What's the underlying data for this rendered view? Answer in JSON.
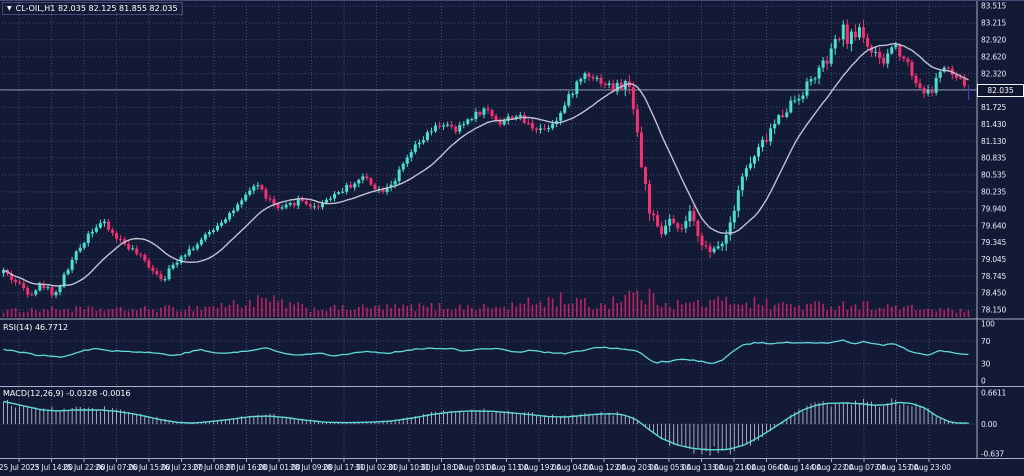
{
  "header": {
    "title": "CL-OIL,H1 82.035 82.125 81.855 82.035",
    "symbol": "CL-OIL",
    "timeframe": "H1"
  },
  "price_axis": {
    "current_price": "82.035",
    "levels": [
      {
        "p": 83.515,
        "t": "83.515"
      },
      {
        "p": 83.215,
        "t": "83.215"
      },
      {
        "p": 82.92,
        "t": "82.920"
      },
      {
        "p": 82.62,
        "t": "82.620"
      },
      {
        "p": 82.32,
        "t": "82.320"
      },
      {
        "p": 82.025,
        "t": "",
        "hidden": true
      },
      {
        "p": 81.725,
        "t": "81.725"
      },
      {
        "p": 81.43,
        "t": "81.430"
      },
      {
        "p": 81.13,
        "t": "81.130"
      },
      {
        "p": 80.835,
        "t": "80.835"
      },
      {
        "p": 80.535,
        "t": "80.535"
      },
      {
        "p": 80.235,
        "t": "80.235"
      },
      {
        "p": 79.94,
        "t": "79.940"
      },
      {
        "p": 79.64,
        "t": "79.640"
      },
      {
        "p": 79.345,
        "t": "79.345"
      },
      {
        "p": 79.045,
        "t": "79.045"
      },
      {
        "p": 78.745,
        "t": "78.745"
      },
      {
        "p": 78.45,
        "t": "78.450"
      },
      {
        "p": 78.15,
        "t": "78.150"
      }
    ]
  },
  "rsi_pane": {
    "label": "RSI(14) 46.7712",
    "scale": [
      {
        "v": 100,
        "t": "100"
      },
      {
        "v": 70,
        "t": "70"
      },
      {
        "v": 30,
        "t": "30"
      },
      {
        "v": 0,
        "t": "0"
      }
    ],
    "dotted_levels": [
      70,
      30
    ]
  },
  "macd_pane": {
    "label": "MACD(12,26,9) -0.0328 -0.0016",
    "scale": [
      {
        "v": 0.6611,
        "t": "0.6611"
      },
      {
        "v": 0.0,
        "t": "0.00"
      },
      {
        "v": -0.637,
        "t": "-0.637"
      }
    ],
    "dotted_levels": [
      0.0
    ]
  },
  "time_axis": {
    "labels": [
      "25 Jul 2023",
      "25 Jul 14:00",
      "25 Jul 22:00",
      "26 Jul 07:00",
      "26 Jul 15:00",
      "26 Jul 23:00",
      "27 Jul 08:00",
      "27 Jul 16:00",
      "28 Jul 01:00",
      "28 Jul 09:00",
      "28 Jul 17:00",
      "31 Jul 02:00",
      "31 Jul 10:00",
      "31 Jul 18:00",
      "1 Aug 03:00",
      "1 Aug 11:00",
      "1 Aug 19:00",
      "2 Aug 04:00",
      "2 Aug 12:00",
      "2 Aug 20:00",
      "3 Aug 05:00",
      "3 Aug 13:00",
      "3 Aug 21:00",
      "4 Aug 06:00",
      "4 Aug 14:00",
      "4 Aug 22:00",
      "7 Aug 07:00",
      "7 Aug 15:00",
      "7 Aug 23:00"
    ]
  },
  "colors": {
    "background": "#131a36",
    "grid": "#414b76",
    "bull": "#4ae0cf",
    "bear": "#f5316f",
    "current_candle": "#5b35c9",
    "ma_line": "#c0c3d2",
    "volume": "#b82461",
    "indicator_line": "#5fd9da",
    "macd_histogram": "#c7cdde",
    "pane_border": "#a9afc6",
    "axis_text": "#e9ecf6",
    "price_line": "#8d93a8",
    "price_tag_bg": "#10152e",
    "price_tag_border": "#f0f2fa",
    "title_text": "#ffffff"
  },
  "chart_data": {
    "type": "candlestick",
    "title": "CL-OIL,H1",
    "bars": 240,
    "price_ylim": [
      78.15,
      83.515
    ],
    "rsi_ylim": [
      0,
      100
    ],
    "macd_ylim": [
      -0.637,
      0.6611
    ],
    "current_bar_ohlc": {
      "open": 82.035,
      "high": 82.125,
      "low": 81.855,
      "close": 82.035
    },
    "indicators": [
      {
        "name": "MA",
        "type": "sma",
        "period": 16
      },
      {
        "name": "RSI",
        "period": 14,
        "value": 46.7712
      },
      {
        "name": "MACD",
        "params": [
          12,
          26,
          9
        ],
        "values": [
          -0.0328,
          -0.0016
        ]
      }
    ],
    "price_path": [
      [
        0,
        78.9
      ],
      [
        12,
        78.7
      ],
      [
        30,
        78.45
      ],
      [
        42,
        78.6
      ],
      [
        55,
        78.42
      ],
      [
        70,
        78.95
      ],
      [
        90,
        79.55
      ],
      [
        102,
        79.7
      ],
      [
        115,
        79.45
      ],
      [
        130,
        79.25
      ],
      [
        148,
        78.95
      ],
      [
        163,
        78.7
      ],
      [
        180,
        79.1
      ],
      [
        200,
        79.35
      ],
      [
        220,
        79.7
      ],
      [
        242,
        80.05
      ],
      [
        256,
        80.4
      ],
      [
        266,
        80.15
      ],
      [
        280,
        79.9
      ],
      [
        300,
        80.1
      ],
      [
        315,
        79.95
      ],
      [
        330,
        80.15
      ],
      [
        350,
        80.35
      ],
      [
        365,
        80.5
      ],
      [
        380,
        80.25
      ],
      [
        395,
        80.45
      ],
      [
        412,
        80.95
      ],
      [
        428,
        81.25
      ],
      [
        442,
        81.45
      ],
      [
        456,
        81.3
      ],
      [
        470,
        81.55
      ],
      [
        486,
        81.7
      ],
      [
        500,
        81.45
      ],
      [
        515,
        81.6
      ],
      [
        530,
        81.4
      ],
      [
        545,
        81.35
      ],
      [
        560,
        81.6
      ],
      [
        575,
        82.1
      ],
      [
        586,
        82.35
      ],
      [
        600,
        82.2
      ],
      [
        614,
        82.05
      ],
      [
        626,
        82.15
      ],
      [
        634,
        81.8
      ],
      [
        642,
        80.6
      ],
      [
        652,
        79.75
      ],
      [
        660,
        79.4
      ],
      [
        668,
        79.75
      ],
      [
        678,
        79.5
      ],
      [
        690,
        79.8
      ],
      [
        700,
        79.45
      ],
      [
        710,
        79.1
      ],
      [
        718,
        79.3
      ],
      [
        728,
        79.55
      ],
      [
        740,
        80.45
      ],
      [
        755,
        80.85
      ],
      [
        770,
        81.3
      ],
      [
        785,
        81.7
      ],
      [
        800,
        81.95
      ],
      [
        815,
        82.3
      ],
      [
        828,
        82.55
      ],
      [
        842,
        83.1
      ],
      [
        850,
        82.9
      ],
      [
        860,
        83.15
      ],
      [
        870,
        82.75
      ],
      [
        882,
        82.45
      ],
      [
        893,
        82.85
      ],
      [
        905,
        82.6
      ],
      [
        918,
        82.1
      ],
      [
        930,
        81.95
      ],
      [
        942,
        82.45
      ],
      [
        952,
        82.3
      ],
      [
        963,
        82.15
      ],
      [
        975,
        82.04
      ]
    ],
    "volatility_path": [
      [
        0,
        0.1
      ],
      [
        100,
        0.1
      ],
      [
        200,
        0.09
      ],
      [
        300,
        0.09
      ],
      [
        400,
        0.11
      ],
      [
        500,
        0.1
      ],
      [
        560,
        0.13
      ],
      [
        600,
        0.11
      ],
      [
        630,
        0.26
      ],
      [
        650,
        0.3
      ],
      [
        670,
        0.2
      ],
      [
        700,
        0.16
      ],
      [
        730,
        0.22
      ],
      [
        760,
        0.2
      ],
      [
        800,
        0.16
      ],
      [
        830,
        0.2
      ],
      [
        860,
        0.24
      ],
      [
        900,
        0.16
      ],
      [
        940,
        0.14
      ],
      [
        975,
        0.1
      ]
    ],
    "rsi_path": [
      [
        0,
        57
      ],
      [
        35,
        46
      ],
      [
        60,
        42
      ],
      [
        95,
        58
      ],
      [
        112,
        53
      ],
      [
        150,
        50
      ],
      [
        175,
        45
      ],
      [
        200,
        55
      ],
      [
        220,
        48
      ],
      [
        245,
        52
      ],
      [
        266,
        58
      ],
      [
        280,
        50
      ],
      [
        296,
        45
      ],
      [
        320,
        50
      ],
      [
        332,
        44
      ],
      [
        350,
        48
      ],
      [
        368,
        52
      ],
      [
        384,
        48
      ],
      [
        410,
        55
      ],
      [
        432,
        58
      ],
      [
        450,
        57
      ],
      [
        466,
        52
      ],
      [
        480,
        56
      ],
      [
        498,
        58
      ],
      [
        514,
        50
      ],
      [
        532,
        54
      ],
      [
        548,
        50
      ],
      [
        566,
        48
      ],
      [
        584,
        54
      ],
      [
        602,
        60
      ],
      [
        614,
        57
      ],
      [
        628,
        55
      ],
      [
        638,
        52
      ],
      [
        648,
        38
      ],
      [
        656,
        31
      ],
      [
        662,
        35
      ],
      [
        668,
        33
      ],
      [
        680,
        38
      ],
      [
        692,
        37
      ],
      [
        706,
        33
      ],
      [
        714,
        31
      ],
      [
        722,
        36
      ],
      [
        730,
        48
      ],
      [
        736,
        55
      ],
      [
        742,
        63
      ],
      [
        756,
        67
      ],
      [
        772,
        66
      ],
      [
        788,
        68
      ],
      [
        800,
        66
      ],
      [
        812,
        68
      ],
      [
        824,
        66
      ],
      [
        836,
        70
      ],
      [
        845,
        72
      ],
      [
        852,
        65
      ],
      [
        862,
        69
      ],
      [
        872,
        66
      ],
      [
        882,
        62
      ],
      [
        893,
        66
      ],
      [
        905,
        56
      ],
      [
        918,
        48
      ],
      [
        928,
        45
      ],
      [
        940,
        53
      ],
      [
        950,
        50
      ],
      [
        962,
        48
      ],
      [
        975,
        46.8
      ]
    ],
    "macd_path": [
      [
        0,
        0.5
      ],
      [
        25,
        0.38
      ],
      [
        42,
        0.3
      ],
      [
        58,
        0.28
      ],
      [
        75,
        0.3
      ],
      [
        100,
        0.3
      ],
      [
        117,
        0.27
      ],
      [
        138,
        0.2
      ],
      [
        159,
        0.1
      ],
      [
        176,
        0.04
      ],
      [
        192,
        0.02
      ],
      [
        209,
        0.05
      ],
      [
        230,
        0.1
      ],
      [
        251,
        0.16
      ],
      [
        268,
        0.17
      ],
      [
        285,
        0.14
      ],
      [
        306,
        0.08
      ],
      [
        326,
        0.04
      ],
      [
        347,
        0.03
      ],
      [
        368,
        0.04
      ],
      [
        389,
        0.06
      ],
      [
        410,
        0.12
      ],
      [
        431,
        0.2
      ],
      [
        452,
        0.26
      ],
      [
        473,
        0.28
      ],
      [
        494,
        0.27
      ],
      [
        510,
        0.24
      ],
      [
        531,
        0.2
      ],
      [
        548,
        0.16
      ],
      [
        565,
        0.15
      ],
      [
        581,
        0.18
      ],
      [
        598,
        0.21
      ],
      [
        611,
        0.22
      ],
      [
        623,
        0.2
      ],
      [
        636,
        0.1
      ],
      [
        648,
        -0.1
      ],
      [
        661,
        -0.3
      ],
      [
        678,
        -0.45
      ],
      [
        694,
        -0.52
      ],
      [
        711,
        -0.55
      ],
      [
        728,
        -0.54
      ],
      [
        744,
        -0.45
      ],
      [
        761,
        -0.25
      ],
      [
        778,
        -0.02
      ],
      [
        790,
        0.15
      ],
      [
        803,
        0.3
      ],
      [
        816,
        0.4
      ],
      [
        828,
        0.44
      ],
      [
        845,
        0.45
      ],
      [
        862,
        0.43
      ],
      [
        874,
        0.4
      ],
      [
        886,
        0.41
      ],
      [
        899,
        0.46
      ],
      [
        911,
        0.44
      ],
      [
        924,
        0.35
      ],
      [
        936,
        0.18
      ],
      [
        949,
        0.05
      ],
      [
        958,
        0.02
      ],
      [
        975,
        0.02
      ]
    ],
    "volume_path": [
      [
        0,
        0.2
      ],
      [
        60,
        0.3
      ],
      [
        120,
        0.25
      ],
      [
        200,
        0.35
      ],
      [
        267,
        0.7
      ],
      [
        310,
        0.3
      ],
      [
        375,
        0.35
      ],
      [
        437,
        0.4
      ],
      [
        500,
        0.35
      ],
      [
        563,
        0.8
      ],
      [
        597,
        0.4
      ],
      [
        627,
        1.0
      ],
      [
        655,
        0.8
      ],
      [
        680,
        0.5
      ],
      [
        710,
        0.6
      ],
      [
        740,
        0.7
      ],
      [
        772,
        0.5
      ],
      [
        814,
        0.45
      ],
      [
        855,
        0.5
      ],
      [
        885,
        0.4
      ],
      [
        918,
        0.3
      ],
      [
        943,
        0.25
      ],
      [
        975,
        0.15
      ]
    ]
  }
}
